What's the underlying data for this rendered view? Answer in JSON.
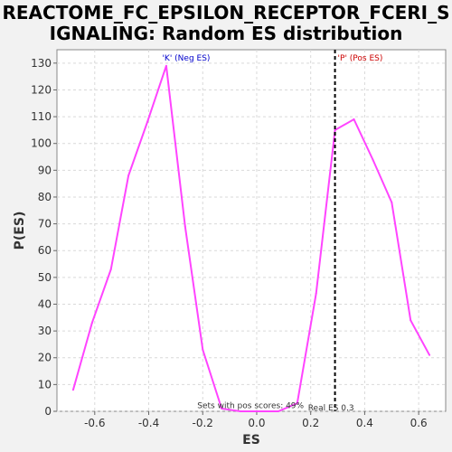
{
  "chart_data": {
    "type": "line",
    "title_lines": [
      "REACTOME_FC_EPSILON_RECEPTOR_FCERI_S",
      "IGNALING: Random ES distribution"
    ],
    "xlabel": "ES",
    "ylabel": "P(ES)",
    "xlim": [
      -0.74,
      0.7
    ],
    "ylim": [
      0,
      135
    ],
    "x_ticks": [
      -0.6,
      -0.4,
      -0.2,
      0.0,
      0.2,
      0.4,
      0.6
    ],
    "x_tick_labels": [
      "-0.6",
      "-0.4",
      "-0.2",
      "0.0",
      "0.2",
      "0.4",
      "0.6"
    ],
    "y_ticks": [
      0,
      10,
      20,
      30,
      40,
      50,
      60,
      70,
      80,
      90,
      100,
      110,
      120,
      130
    ],
    "y_tick_labels": [
      "0",
      "10",
      "20",
      "30",
      "40",
      "50",
      "60",
      "70",
      "80",
      "90",
      "100",
      "110",
      "120",
      "130"
    ],
    "grid": true,
    "series": [
      {
        "color": "#ff44ff",
        "x": [
          -0.68,
          -0.61,
          -0.54,
          -0.475,
          -0.405,
          -0.335,
          -0.265,
          -0.2,
          -0.13,
          -0.06,
          0.0,
          0.08,
          0.15,
          0.22,
          0.29,
          0.36,
          0.43,
          0.5,
          0.57,
          0.64
        ],
        "y": [
          8,
          33,
          53,
          88,
          108,
          129,
          69,
          23,
          1,
          0,
          0,
          0,
          3,
          44,
          105,
          109,
          94,
          78,
          34,
          21
        ]
      }
    ],
    "real_es_line": {
      "x": 0.29,
      "color": "#000000"
    },
    "annotations": [
      {
        "text": "'K' (Neg ES)",
        "x": -0.35,
        "y": 131,
        "color": "#0000cc"
      },
      {
        "text": "'P' (Pos ES)",
        "x": 0.3,
        "y": 131,
        "color": "#cc0000"
      },
      {
        "text": "Sets with pos scores: 49%",
        "x": -0.22,
        "y": 1.2,
        "color": "#333333"
      },
      {
        "text": "Real ES 0.3",
        "x": 0.19,
        "y": 0.4,
        "color": "#333333"
      }
    ]
  }
}
